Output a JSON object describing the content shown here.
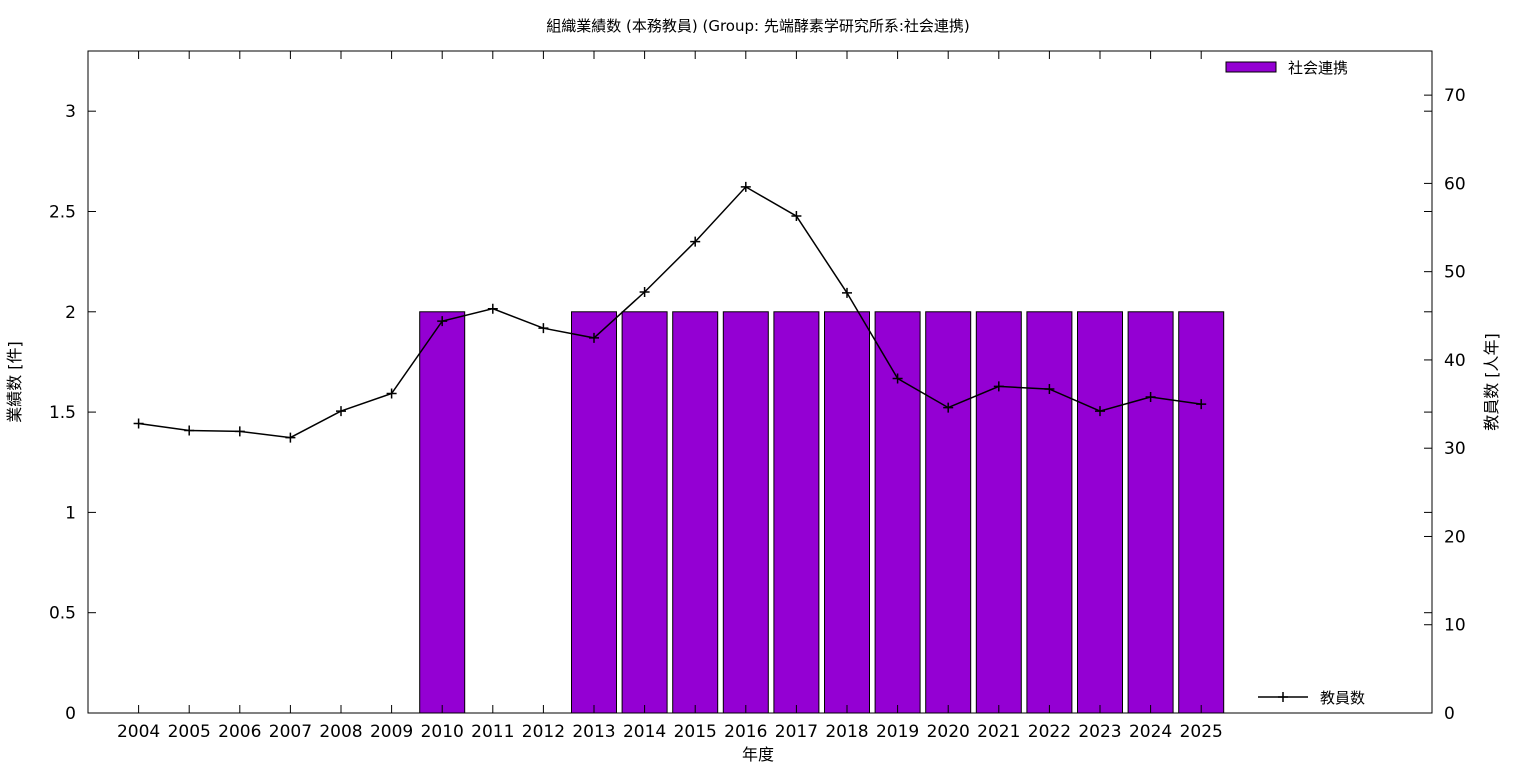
{
  "chart_data": {
    "type": "bar",
    "title": "組織業績数 (本務教員) (Group: 先端酵素学研究所系:社会連携)",
    "xlabel": "年度",
    "ylabel": "業績数 [件]",
    "y2label": "教員数 [人年]",
    "categories": [
      "2004",
      "2005",
      "2006",
      "2007",
      "2008",
      "2009",
      "2010",
      "2011",
      "2012",
      "2013",
      "2014",
      "2015",
      "2016",
      "2017",
      "2018",
      "2019",
      "2020",
      "2021",
      "2022",
      "2023",
      "2024",
      "2025"
    ],
    "ylim": [
      0,
      3.3
    ],
    "yticks": [
      0,
      0.5,
      1,
      1.5,
      2,
      2.5,
      3
    ],
    "ytick_labels": [
      "0",
      "0.5",
      "1",
      "1.5",
      "2",
      "2.5",
      "3"
    ],
    "y2lim": [
      0,
      75
    ],
    "y2ticks": [
      0,
      10,
      20,
      30,
      40,
      50,
      60,
      70
    ],
    "y2tick_labels": [
      "0",
      "10",
      "20",
      "30",
      "40",
      "50",
      "60",
      "70"
    ],
    "grid": false,
    "series": [
      {
        "name": "社会連携",
        "kind": "bar",
        "axis": "left",
        "color": "#9400d3",
        "values": [
          0,
          0,
          0,
          0,
          0,
          0,
          2,
          0,
          0,
          2,
          2,
          2,
          2,
          2,
          2,
          2,
          2,
          2,
          2,
          2,
          2,
          2
        ]
      },
      {
        "name": "教員数",
        "kind": "line",
        "axis": "right",
        "color": "#000000",
        "values": [
          32.8,
          32.0,
          31.9,
          31.2,
          34.2,
          36.2,
          44.4,
          45.8,
          43.6,
          42.5,
          47.7,
          53.4,
          59.6,
          56.3,
          47.6,
          37.9,
          34.6,
          37.0,
          36.7,
          34.2,
          35.8,
          35.0
        ]
      }
    ],
    "legend": [
      {
        "label": "社会連携",
        "placement": "top-right"
      },
      {
        "label": "教員数",
        "placement": "bottom-right"
      }
    ]
  }
}
